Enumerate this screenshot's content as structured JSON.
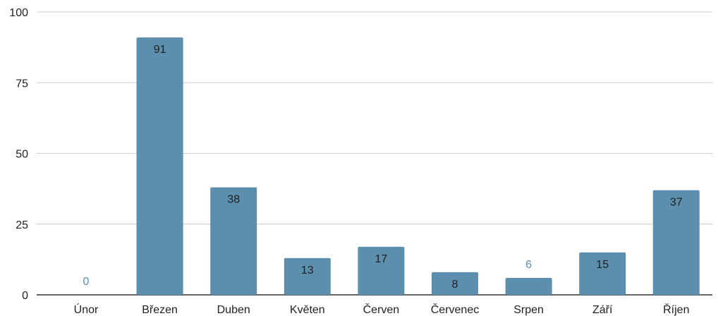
{
  "chart_data": {
    "type": "bar",
    "title": "",
    "xlabel": "",
    "ylabel": "",
    "categories": [
      "Únor",
      "Březen",
      "Duben",
      "Květen",
      "Červen",
      "Červenec",
      "Srpen",
      "Září",
      "Říjen"
    ],
    "values": [
      0,
      91,
      38,
      13,
      17,
      8,
      6,
      15,
      37
    ],
    "ylim": [
      0,
      100
    ],
    "yticks": [
      "0",
      "25",
      "50",
      "75",
      "100"
    ],
    "grid": true,
    "legend": "none",
    "colors": {
      "bar": "#5b8fad",
      "label_inside": "#1f1f1f",
      "label_outside": "#5b8fad",
      "grid": "#cccccc",
      "axis": "#333333"
    }
  }
}
